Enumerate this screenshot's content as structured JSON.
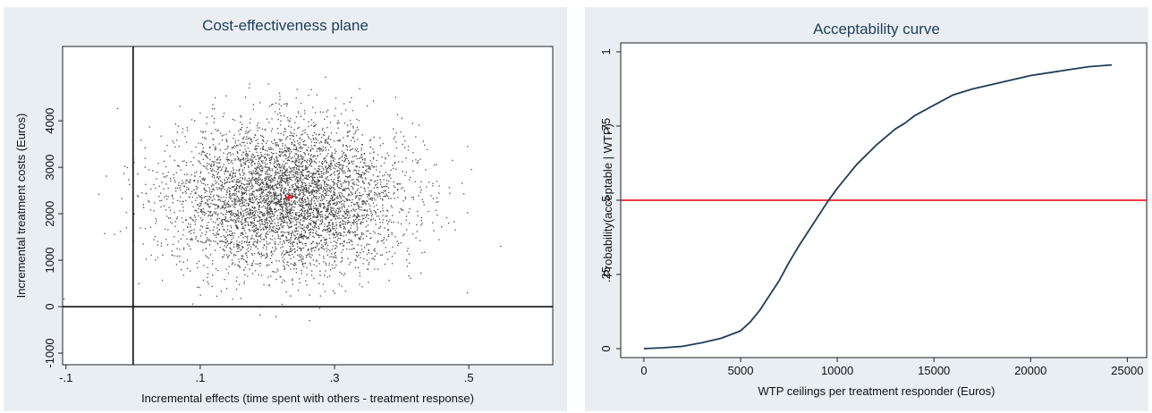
{
  "chart_data": [
    {
      "type": "scatter",
      "title": "Cost-effectiveness plane",
      "xlabel": "Incremental effects (time spent with others - treatment response)",
      "ylabel": "Incremental treatment costs (Euros)",
      "xlim": [
        -0.105,
        0.625
      ],
      "ylim": [
        -1250,
        5600
      ],
      "xticks": [
        -0.1,
        0.1,
        0.3,
        0.5
      ],
      "xtick_labels": [
        "-.1",
        ".1",
        ".3",
        ".5"
      ],
      "yticks": [
        -1000,
        0,
        1000,
        2000,
        3000,
        4000
      ],
      "ytick_labels": [
        "-1000",
        "0",
        "1000",
        "2000",
        "3000",
        "4000"
      ],
      "reference_lines": {
        "x": 0,
        "y": 0
      },
      "cloud": {
        "n_points": 5000,
        "mean_x": 0.23,
        "mean_y": 2350,
        "sd_x": 0.085,
        "sd_y": 780
      },
      "point_estimate": {
        "x": 0.232,
        "y": 2350,
        "color": "#e8202a"
      },
      "point_color": "#4a4a4a",
      "grid": false
    },
    {
      "type": "line",
      "title": "Acceptability curve",
      "xlabel": "WTP ceilings per treatment responder (Euros)",
      "ylabel": "Probability(acceptable | WTP)",
      "xlim": [
        -1200,
        26000
      ],
      "ylim": [
        -0.03,
        1.03
      ],
      "xticks": [
        0,
        5000,
        10000,
        15000,
        20000,
        25000
      ],
      "xtick_labels": [
        "0",
        "5000",
        "10000",
        "15000",
        "20000",
        "25000"
      ],
      "yticks": [
        0,
        0.25,
        0.5,
        0.75,
        1
      ],
      "ytick_labels": [
        "0",
        ".25",
        ".5",
        ".75",
        "1"
      ],
      "x": [
        0,
        1000,
        2000,
        3000,
        4000,
        5000,
        5500,
        6000,
        6500,
        7000,
        7500,
        8000,
        8500,
        9000,
        9500,
        10000,
        11000,
        12000,
        13000,
        13500,
        14000,
        15000,
        16000,
        17000,
        18000,
        19000,
        20000,
        21000,
        22000,
        23000,
        24200
      ],
      "y": [
        0.0,
        0.003,
        0.008,
        0.02,
        0.035,
        0.06,
        0.09,
        0.13,
        0.18,
        0.23,
        0.29,
        0.345,
        0.395,
        0.445,
        0.495,
        0.54,
        0.62,
        0.685,
        0.74,
        0.76,
        0.785,
        0.82,
        0.855,
        0.875,
        0.89,
        0.905,
        0.92,
        0.93,
        0.94,
        0.95,
        0.956
      ],
      "line_color": "#1f3d5a",
      "reference_line": {
        "y": 0.5,
        "color": "#e8202a"
      },
      "grid": false
    }
  ]
}
